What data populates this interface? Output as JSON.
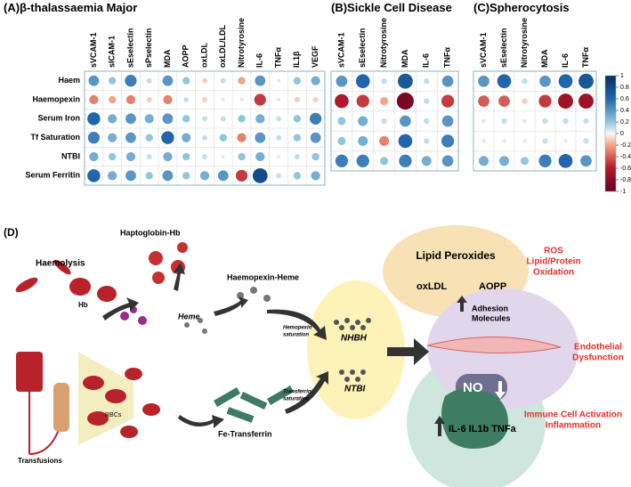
{
  "panels": [
    {
      "label": "(A)",
      "title": "β-thalassaemia Major",
      "row_labels": [
        "Haem",
        "Haemopexin",
        "Serum Iron",
        "Tf Saturation",
        "NTBI",
        "Serum Ferritin"
      ],
      "columns": [
        "sVCAM-1",
        "sICAM-1",
        "sEselectin",
        "sPselectin",
        "MDA",
        "AOPP",
        "oxLDL",
        "oxLDL/LDL",
        "Nitrotyrosine",
        "IL-6",
        "TNFα",
        "IL1β",
        "VEGF"
      ],
      "values": [
        [
          0.4,
          0.2,
          0.5,
          0.1,
          0.4,
          0.2,
          -0.1,
          0.1,
          -0.2,
          0.4,
          0.05,
          0.2,
          0.3
        ],
        [
          -0.3,
          -0.2,
          -0.3,
          -0.1,
          -0.3,
          0.1,
          -0.1,
          -0.05,
          -0.05,
          -0.5,
          0.05,
          -0.1,
          -0.1
        ],
        [
          0.6,
          0.3,
          0.4,
          0.3,
          0.4,
          0.2,
          0.1,
          0.1,
          0.2,
          0.3,
          0.1,
          0.2,
          0.5
        ],
        [
          0.5,
          0.3,
          0.4,
          0.2,
          0.6,
          0.3,
          0.1,
          0.2,
          -0.3,
          0.4,
          0.1,
          0.2,
          0.4
        ],
        [
          0.3,
          0.2,
          0.3,
          0.1,
          0.3,
          0.2,
          0.1,
          0.05,
          0.2,
          0.3,
          0.05,
          0.1,
          0.2
        ],
        [
          0.6,
          0.3,
          0.4,
          0.2,
          0.4,
          0.2,
          0.3,
          0.4,
          -0.5,
          0.8,
          0.1,
          0.2,
          0.3
        ]
      ]
    },
    {
      "label": "(B)",
      "title": "Sickle Cell Disease",
      "columns": [
        "sVCAM-1",
        "sEselectin",
        "Nitrotyrosine",
        "MDA",
        "IL-6",
        "TNFα"
      ],
      "values": [
        [
          0.4,
          0.6,
          0.1,
          0.7,
          0.1,
          0.4
        ],
        [
          -0.6,
          -0.5,
          -0.2,
          -0.9,
          0.1,
          -0.5
        ],
        [
          0.2,
          0.3,
          0.1,
          0.4,
          0.1,
          0.4
        ],
        [
          0.2,
          0.3,
          -0.3,
          0.6,
          0.1,
          0.5
        ],
        [
          0.5,
          0.5,
          0.2,
          0.5,
          0.3,
          0.4
        ]
      ]
    },
    {
      "label": "(C)",
      "title": "Spherocytosis",
      "columns": [
        "sVCAM-1",
        "sEselectin",
        "Nitrotyrosine",
        "MDA",
        "IL-6",
        "TNFα"
      ],
      "values": [
        [
          0.4,
          0.6,
          0.1,
          0.4,
          0.6,
          0.7
        ],
        [
          -0.4,
          -0.4,
          -0.1,
          -0.5,
          -0.7,
          -0.7
        ],
        [
          0.05,
          0.1,
          0.05,
          0.1,
          0.1,
          0.1
        ],
        [
          -0.05,
          0.05,
          0.05,
          0.1,
          0.05,
          0.1
        ],
        [
          0.3,
          0.3,
          0.2,
          0.5,
          0.6,
          0.4
        ]
      ]
    }
  ],
  "colorbar": {
    "lim": [
      -1,
      1
    ],
    "ticks": [
      1,
      0.8,
      0.6,
      0.4,
      0.2,
      0,
      -0.2,
      -0.4,
      -0.6,
      -0.8,
      -1
    ]
  },
  "diagram": {
    "label": "(D)",
    "haemolysis": "Haemolysis",
    "haptoglobin": "Haptoglobin-Hb",
    "hb": "Hb",
    "haemopexin_heme": "Haemopexin-Heme",
    "heme": "Heme",
    "hemopexin_sat": [
      "Hemopexin",
      "saturation"
    ],
    "nhbh": "NHBH",
    "ntbi": "NTBI",
    "transferrin_sat": [
      "Transferrin",
      "saturation"
    ],
    "fe_transferrin": "Fe-Transferrin",
    "rbcs": "RBCs",
    "transfusions": "Transfusions",
    "lipid_peroxides": "Lipid Peroxides",
    "oxldl": "oxLDL",
    "aopp": "AOPP",
    "ros": [
      "ROS",
      "Lipid/Protein",
      "Oxidation"
    ],
    "adhesion": [
      "Adhesion",
      "Molecules"
    ],
    "no": "NO",
    "endothelial": [
      "Endothelial",
      "Dysfunction"
    ],
    "cytokines": "IL-6 IL1b TNFa",
    "immune": [
      "Immune Cell Activation",
      "Inflammation"
    ]
  }
}
